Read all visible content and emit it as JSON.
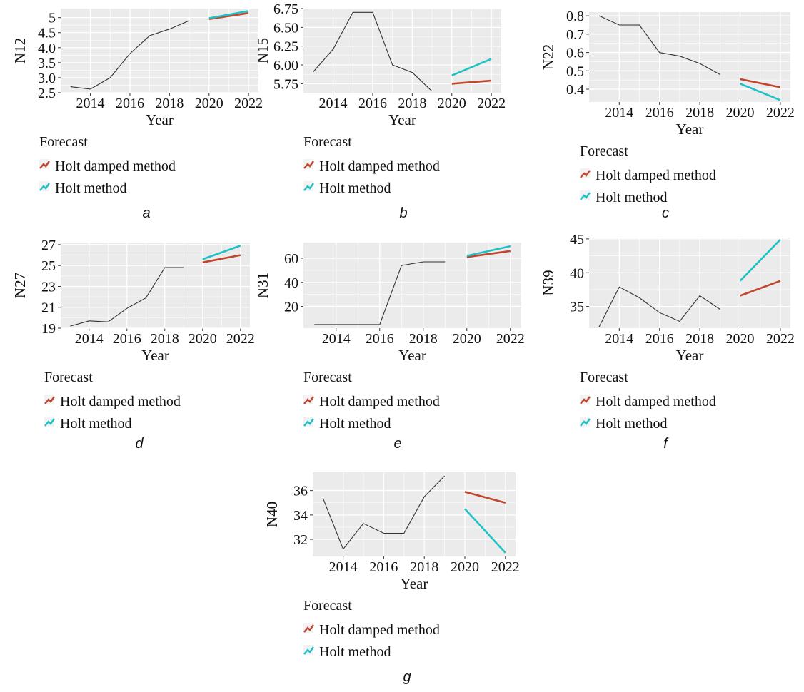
{
  "legend": {
    "title": "Forecast",
    "items": [
      {
        "label": "Holt damped method",
        "color": "#c2452d"
      },
      {
        "label": "Holt method",
        "color": "#1ec2c6"
      }
    ]
  },
  "colors": {
    "panel_bg": "#ebebeb",
    "grid": "#ffffff",
    "actual_line": "#333333",
    "damped": "#c2452d",
    "holt": "#1ec2c6"
  },
  "chart_data": [
    {
      "type": "line",
      "caption": "a",
      "xlabel": "Year",
      "ylabel": "N12",
      "xlim": [
        2012.5,
        2022.5
      ],
      "ylim": [
        2.5,
        5.3
      ],
      "xticks": [
        2014,
        2016,
        2018,
        2020,
        2022
      ],
      "xtick_labels": [
        "2014",
        "2016",
        "2018",
        "2020",
        "2022"
      ],
      "yticks": [
        2.5,
        3.0,
        3.5,
        4.0,
        4.5,
        5.0
      ],
      "ytick_labels": [
        "2.5",
        "3.0",
        "3.5",
        "4.0",
        "4.5",
        "5"
      ],
      "actual": {
        "x": [
          2013,
          2014,
          2015,
          2016,
          2017,
          2018,
          2019
        ],
        "y": [
          2.7,
          2.62,
          3.0,
          3.8,
          4.4,
          4.62,
          4.9
        ]
      },
      "series": [
        {
          "name": "Holt damped method",
          "x": [
            2020,
            2022
          ],
          "y": [
            4.95,
            5.15
          ]
        },
        {
          "name": "Holt method",
          "x": [
            2020,
            2022
          ],
          "y": [
            4.98,
            5.22
          ]
        }
      ]
    },
    {
      "type": "line",
      "caption": "b",
      "xlabel": "Year",
      "ylabel": "N15",
      "xlim": [
        2012.5,
        2022.5
      ],
      "ylim": [
        5.63,
        6.75
      ],
      "xticks": [
        2014,
        2016,
        2018,
        2020,
        2022
      ],
      "xtick_labels": [
        "2014",
        "2016",
        "2018",
        "2020",
        "2022"
      ],
      "yticks": [
        5.75,
        6.0,
        6.25,
        6.5,
        6.75
      ],
      "ytick_labels": [
        "5.75",
        "6.00",
        "6.25",
        "6.50",
        "6.75"
      ],
      "actual": {
        "x": [
          2013,
          2014,
          2015,
          2016,
          2017,
          2018,
          2019
        ],
        "y": [
          5.91,
          6.21,
          6.7,
          6.7,
          6.0,
          5.9,
          5.65
        ]
      },
      "series": [
        {
          "name": "Holt damped method",
          "x": [
            2020,
            2022
          ],
          "y": [
            5.75,
            5.79
          ]
        },
        {
          "name": "Holt method",
          "x": [
            2020,
            2022
          ],
          "y": [
            5.86,
            6.08
          ]
        }
      ]
    },
    {
      "type": "line",
      "caption": "c",
      "xlabel": "Year",
      "ylabel": "N22",
      "xlim": [
        2012.5,
        2022.5
      ],
      "ylim": [
        0.33,
        0.82
      ],
      "xticks": [
        2014,
        2016,
        2018,
        2020,
        2022
      ],
      "xtick_labels": [
        "2014",
        "2016",
        "2018",
        "2020",
        "2022"
      ],
      "yticks": [
        0.4,
        0.5,
        0.6,
        0.7,
        0.8
      ],
      "ytick_labels": [
        "0.4",
        "0.5",
        "0.6",
        "0.7",
        "0.8"
      ],
      "actual": {
        "x": [
          2013,
          2014,
          2015,
          2016,
          2017,
          2018,
          2019
        ],
        "y": [
          0.8,
          0.75,
          0.75,
          0.6,
          0.58,
          0.54,
          0.48
        ]
      },
      "series": [
        {
          "name": "Holt damped method",
          "x": [
            2020,
            2022
          ],
          "y": [
            0.455,
            0.41
          ]
        },
        {
          "name": "Holt method",
          "x": [
            2020,
            2022
          ],
          "y": [
            0.43,
            0.34
          ]
        }
      ]
    },
    {
      "type": "line",
      "caption": "d",
      "xlabel": "Year",
      "ylabel": "N27",
      "xlim": [
        2012.5,
        2022.5
      ],
      "ylim": [
        19.0,
        27.2
      ],
      "xticks": [
        2014,
        2016,
        2018,
        2020,
        2022
      ],
      "xtick_labels": [
        "2014",
        "2016",
        "2018",
        "2020",
        "2022"
      ],
      "yticks": [
        19,
        21,
        23,
        25,
        27
      ],
      "ytick_labels": [
        "19",
        "21",
        "23",
        "25",
        "27"
      ],
      "actual": {
        "x": [
          2013,
          2014,
          2015,
          2016,
          2017,
          2018,
          2019
        ],
        "y": [
          19.2,
          19.7,
          19.6,
          20.9,
          21.9,
          24.8,
          24.8
        ]
      },
      "series": [
        {
          "name": "Holt damped method",
          "x": [
            2020,
            2022
          ],
          "y": [
            25.3,
            26.0
          ]
        },
        {
          "name": "Holt method",
          "x": [
            2020,
            2022
          ],
          "y": [
            25.6,
            26.9
          ]
        }
      ]
    },
    {
      "type": "line",
      "caption": "e",
      "xlabel": "Year",
      "ylabel": "N31",
      "xlim": [
        2012.5,
        2022.5
      ],
      "ylim": [
        2,
        73
      ],
      "xticks": [
        2014,
        2016,
        2018,
        2020,
        2022
      ],
      "xtick_labels": [
        "2014",
        "2016",
        "2018",
        "2020",
        "2022"
      ],
      "yticks": [
        20,
        40,
        60
      ],
      "ytick_labels": [
        "20",
        "40",
        "60"
      ],
      "actual": {
        "x": [
          2013,
          2014,
          2015,
          2016,
          2017,
          2018,
          2019
        ],
        "y": [
          5,
          5,
          5,
          5,
          54,
          57,
          57
        ]
      },
      "series": [
        {
          "name": "Holt damped method",
          "x": [
            2020,
            2022
          ],
          "y": [
            61,
            66
          ]
        },
        {
          "name": "Holt method",
          "x": [
            2020,
            2022
          ],
          "y": [
            62,
            70
          ]
        }
      ]
    },
    {
      "type": "line",
      "caption": "f",
      "xlabel": "Year",
      "ylabel": "N39",
      "xlim": [
        2012.5,
        2022.5
      ],
      "ylim": [
        31.8,
        45.2
      ],
      "xticks": [
        2014,
        2016,
        2018,
        2020,
        2022
      ],
      "xtick_labels": [
        "2014",
        "2016",
        "2018",
        "2020",
        "2022"
      ],
      "yticks": [
        35,
        40,
        45
      ],
      "ytick_labels": [
        "35",
        "40",
        "45"
      ],
      "actual": {
        "x": [
          2013,
          2014,
          2015,
          2016,
          2017,
          2018,
          2019
        ],
        "y": [
          32.0,
          37.9,
          36.3,
          34.1,
          32.8,
          36.6,
          34.6
        ]
      },
      "series": [
        {
          "name": "Holt damped method",
          "x": [
            2020,
            2022
          ],
          "y": [
            36.6,
            38.8
          ]
        },
        {
          "name": "Holt method",
          "x": [
            2020,
            2022
          ],
          "y": [
            38.8,
            44.9
          ]
        }
      ]
    },
    {
      "type": "line",
      "caption": "g",
      "xlabel": "Year",
      "ylabel": "N40",
      "xlim": [
        2012.5,
        2022.5
      ],
      "ylim": [
        30.6,
        37.5
      ],
      "xticks": [
        2014,
        2016,
        2018,
        2020,
        2022
      ],
      "xtick_labels": [
        "2014",
        "2016",
        "2018",
        "2020",
        "2022"
      ],
      "yticks": [
        32,
        34,
        36
      ],
      "ytick_labels": [
        "32",
        "34",
        "36"
      ],
      "actual": {
        "x": [
          2013,
          2014,
          2015,
          2016,
          2017,
          2018,
          2019
        ],
        "y": [
          35.4,
          31.2,
          33.3,
          32.5,
          32.5,
          35.5,
          37.2
        ]
      },
      "series": [
        {
          "name": "Holt damped method",
          "x": [
            2020,
            2022
          ],
          "y": [
            35.9,
            35.0
          ]
        },
        {
          "name": "Holt method",
          "x": [
            2020,
            2022
          ],
          "y": [
            34.5,
            30.9
          ]
        }
      ]
    }
  ]
}
